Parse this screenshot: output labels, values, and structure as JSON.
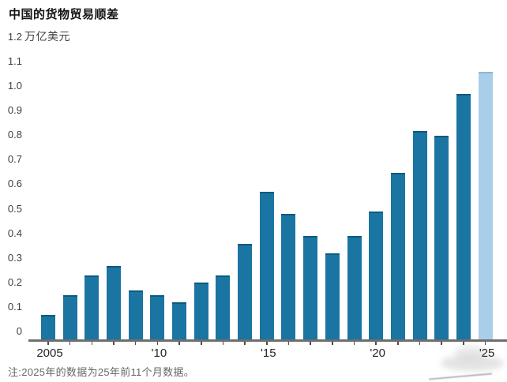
{
  "title": "中国的货物贸易顺差",
  "unit_label": "万亿美元",
  "note": "注:2025年的数据为25年前11个月数据。",
  "chart_data": {
    "type": "bar",
    "title": "中国的货物贸易顺差",
    "ylabel_unit": "万亿美元",
    "categories": [
      2005,
      2006,
      2007,
      2008,
      2009,
      2010,
      2011,
      2012,
      2013,
      2014,
      2015,
      2016,
      2017,
      2018,
      2019,
      2020,
      2021,
      2022,
      2023,
      2024,
      2025
    ],
    "values": [
      0.1,
      0.18,
      0.26,
      0.3,
      0.2,
      0.18,
      0.15,
      0.23,
      0.26,
      0.39,
      0.6,
      0.51,
      0.42,
      0.35,
      0.42,
      0.52,
      0.68,
      0.85,
      0.83,
      1.0,
      1.09
    ],
    "highlight_index": 20,
    "highlight_meaning": "2025年为前11个月数据",
    "y_tick_labels": [
      "0",
      "0.1",
      "0.2",
      "0.3",
      "0.4",
      "0.5",
      "0.6",
      "0.7",
      "0.8",
      "0.9",
      "1.0",
      "1.1",
      "1.2"
    ],
    "ylim": [
      0,
      1.2
    ],
    "x_axis_labels": [
      {
        "index": 0,
        "label": "2005"
      },
      {
        "index": 5,
        "label": "'10"
      },
      {
        "index": 10,
        "label": "'15"
      },
      {
        "index": 15,
        "label": "'20"
      },
      {
        "index": 20,
        "label": "'25"
      }
    ],
    "grid": false,
    "legend": null,
    "colors": {
      "bar": "#1a75a3",
      "bar_top_edge": "#0d5a7d",
      "bar_highlight": "#a9cee9",
      "bar_highlight_top_edge": "#8cb8d2",
      "axis_line": "#6e6e6e",
      "text": "#3f3f3f"
    }
  }
}
